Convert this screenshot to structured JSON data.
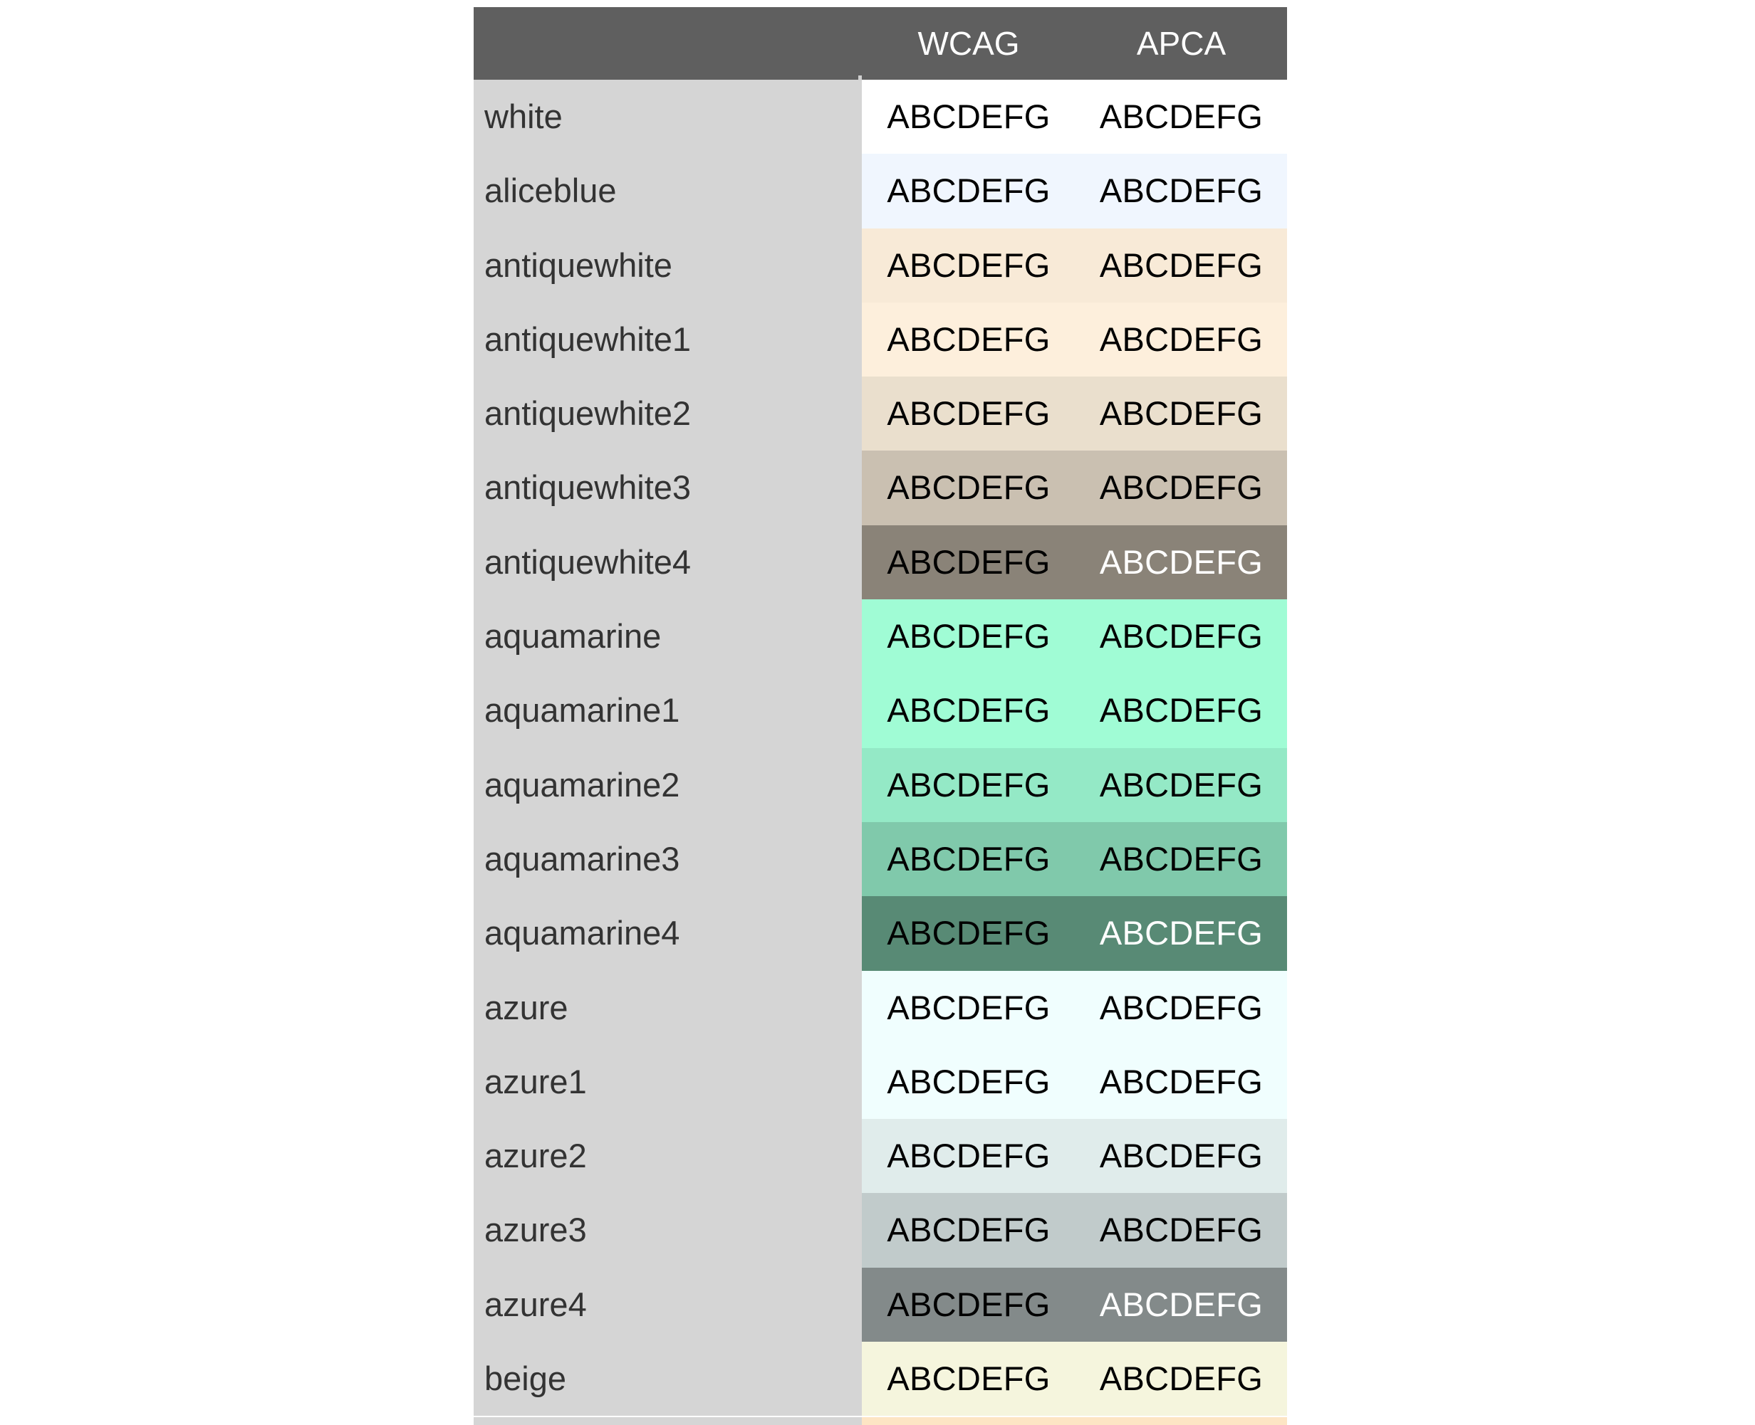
{
  "header": {
    "name_label": "",
    "wcag_label": "WCAG",
    "apca_label": "APCA"
  },
  "sample_text": "ABCDEFG",
  "rows": [
    {
      "name": "white",
      "bg": "#ffffff",
      "wcag_text": "ABCDEFG",
      "apca_text": "ABCDEFG",
      "wcag_color": "#000000",
      "apca_color": "#000000"
    },
    {
      "name": "aliceblue",
      "bg": "#f0f6fe",
      "wcag_text": "ABCDEFG",
      "apca_text": "ABCDEFG",
      "wcag_color": "#000000",
      "apca_color": "#000000"
    },
    {
      "name": "antiquewhite",
      "bg": "#f8ead7",
      "wcag_text": "ABCDEFG",
      "apca_text": "ABCDEFG",
      "wcag_color": "#000000",
      "apca_color": "#000000"
    },
    {
      "name": "antiquewhite1",
      "bg": "#fdefdc",
      "wcag_text": "ABCDEFG",
      "apca_text": "ABCDEFG",
      "wcag_color": "#000000",
      "apca_color": "#000000"
    },
    {
      "name": "antiquewhite2",
      "bg": "#eadfcd",
      "wcag_text": "ABCDEFG",
      "apca_text": "ABCDEFG",
      "wcag_color": "#000000",
      "apca_color": "#000000"
    },
    {
      "name": "antiquewhite3",
      "bg": "#cac0b1",
      "wcag_text": "ABCDEFG",
      "apca_text": "ABCDEFG",
      "wcag_color": "#000000",
      "apca_color": "#000000"
    },
    {
      "name": "antiquewhite4",
      "bg": "#8a8378",
      "wcag_text": "ABCDEFG",
      "apca_text": "ABCDEFG",
      "wcag_color": "#000000",
      "apca_color": "#ffffff"
    },
    {
      "name": "aquamarine",
      "bg": "#a0fcd5",
      "wcag_text": "ABCDEFG",
      "apca_text": "ABCDEFG",
      "wcag_color": "#000000",
      "apca_color": "#000000"
    },
    {
      "name": "aquamarine1",
      "bg": "#a0fcd5",
      "wcag_text": "ABCDEFG",
      "apca_text": "ABCDEFG",
      "wcag_color": "#000000",
      "apca_color": "#000000"
    },
    {
      "name": "aquamarine2",
      "bg": "#94e9c6",
      "wcag_text": "ABCDEFG",
      "apca_text": "ABCDEFG",
      "wcag_color": "#000000",
      "apca_color": "#000000"
    },
    {
      "name": "aquamarine3",
      "bg": "#80c9ab",
      "wcag_text": "ABCDEFG",
      "apca_text": "ABCDEFG",
      "wcag_color": "#000000",
      "apca_color": "#000000"
    },
    {
      "name": "aquamarine4",
      "bg": "#588a75",
      "wcag_text": "ABCDEFG",
      "apca_text": "ABCDEFG",
      "wcag_color": "#000000",
      "apca_color": "#ffffff"
    },
    {
      "name": "azure",
      "bg": "#f0fefe",
      "wcag_text": "ABCDEFG",
      "apca_text": "ABCDEFG",
      "wcag_color": "#000000",
      "apca_color": "#000000"
    },
    {
      "name": "azure1",
      "bg": "#f0fefe",
      "wcag_text": "ABCDEFG",
      "apca_text": "ABCDEFG",
      "wcag_color": "#000000",
      "apca_color": "#000000"
    },
    {
      "name": "azure2",
      "bg": "#e0eceb",
      "wcag_text": "ABCDEFG",
      "apca_text": "ABCDEFG",
      "wcag_color": "#000000",
      "apca_color": "#000000"
    },
    {
      "name": "azure3",
      "bg": "#c1cbcb",
      "wcag_text": "ABCDEFG",
      "apca_text": "ABCDEFG",
      "wcag_color": "#000000",
      "apca_color": "#000000"
    },
    {
      "name": "azure4",
      "bg": "#838a8a",
      "wcag_text": "ABCDEFG",
      "apca_text": "ABCDEFG",
      "wcag_color": "#000000",
      "apca_color": "#ffffff"
    },
    {
      "name": "beige",
      "bg": "#f5f5dd",
      "wcag_text": "ABCDEFG",
      "apca_text": "ABCDEFG",
      "wcag_color": "#000000",
      "apca_color": "#000000"
    }
  ],
  "next_row_bg": "#fde5c4"
}
